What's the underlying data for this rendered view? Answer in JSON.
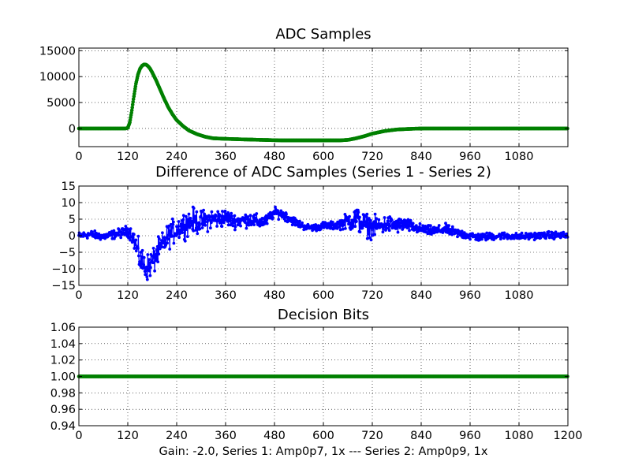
{
  "caption": "Gain: -2.0, Series 1: Amp0p7, 1x --- Series 2: Amp0p9, 1x",
  "chart_data": [
    {
      "type": "line",
      "title": "ADC Samples",
      "xlim": [
        0,
        1200
      ],
      "ylim": [
        -3500,
        15500
      ],
      "xticks": [
        0,
        120,
        240,
        360,
        480,
        600,
        720,
        840,
        960,
        1080
      ],
      "xtick_labels": [
        "0",
        "120",
        "240",
        "360",
        "480",
        "600",
        "720",
        "840",
        "960",
        "1080"
      ],
      "yticks": [
        0,
        5000,
        10000,
        15000
      ],
      "ytick_labels": [
        "0",
        "5000",
        "10000",
        "15000"
      ],
      "grid": true,
      "series": [
        {
          "color": "#008000",
          "marker": "dot",
          "x": [
            0,
            100,
            115,
            120,
            125,
            130,
            135,
            140,
            145,
            150,
            155,
            160,
            165,
            170,
            175,
            180,
            190,
            200,
            210,
            220,
            230,
            240,
            255,
            270,
            290,
            310,
            330,
            360,
            400,
            450,
            500,
            550,
            600,
            640,
            660,
            680,
            700,
            720,
            750,
            780,
            820,
            850,
            900,
            1000,
            1100,
            1199
          ],
          "y": [
            0,
            0,
            0,
            100,
            1200,
            3500,
            6200,
            8600,
            10400,
            11500,
            12100,
            12350,
            12300,
            12000,
            11500,
            10800,
            9200,
            7400,
            5600,
            4000,
            2700,
            1600,
            500,
            -400,
            -1100,
            -1600,
            -1900,
            -2000,
            -2100,
            -2200,
            -2300,
            -2300,
            -2300,
            -2300,
            -2200,
            -1900,
            -1500,
            -1000,
            -500,
            -200,
            -50,
            0,
            0,
            0,
            0,
            0
          ]
        }
      ]
    },
    {
      "type": "line",
      "title": "Difference of ADC Samples (Series 1 - Series 2)",
      "xlim": [
        0,
        1200
      ],
      "ylim": [
        -15,
        15
      ],
      "xticks": [
        0,
        120,
        240,
        360,
        480,
        600,
        720,
        840,
        960,
        1080
      ],
      "xtick_labels": [
        "0",
        "120",
        "240",
        "360",
        "480",
        "600",
        "720",
        "840",
        "960",
        "1080"
      ],
      "yticks": [
        -15,
        -10,
        -5,
        0,
        5,
        10,
        15
      ],
      "ytick_labels": [
        "−15",
        "−10",
        "−5",
        "0",
        "5",
        "10",
        "15"
      ],
      "grid": true,
      "series": [
        {
          "color": "#0000ff",
          "marker": "dot",
          "x": [
            0,
            30,
            60,
            90,
            110,
            120,
            130,
            140,
            150,
            160,
            170,
            180,
            190,
            200,
            210,
            220,
            240,
            260,
            280,
            300,
            320,
            340,
            360,
            380,
            400,
            420,
            440,
            460,
            480,
            500,
            520,
            540,
            560,
            580,
            600,
            620,
            640,
            660,
            680,
            700,
            720,
            740,
            760,
            780,
            800,
            820,
            840,
            860,
            880,
            900,
            920,
            940,
            960,
            980,
            1000,
            1040,
            1080,
            1120,
            1160,
            1199
          ],
          "y": [
            0,
            0.4,
            -0.3,
            0.5,
            1.0,
            1.5,
            0.5,
            -3.0,
            -7.0,
            -9.0,
            -9.5,
            -8.0,
            -6.0,
            -4.0,
            -2.0,
            0.0,
            2.0,
            3.5,
            4.5,
            4.0,
            5.0,
            5.0,
            5.5,
            4.5,
            4.5,
            5.0,
            4.0,
            4.5,
            7.0,
            6.5,
            5.0,
            3.5,
            2.5,
            2.5,
            3.0,
            3.0,
            3.5,
            4.5,
            5.0,
            3.5,
            2.5,
            3.0,
            3.5,
            3.0,
            3.5,
            2.5,
            2.0,
            1.5,
            1.5,
            2.0,
            1.0,
            0.5,
            0.0,
            -0.5,
            -0.3,
            0.0,
            -0.3,
            0.0,
            0.2,
            0.0
          ],
          "noise_amplitude": [
            0.7,
            0.8,
            0.8,
            0.9,
            1.0,
            1.2,
            1.5,
            2.5,
            3.0,
            3.0,
            2.8,
            2.8,
            2.8,
            2.8,
            2.6,
            2.6,
            2.5,
            2.6,
            2.6,
            2.4,
            2.2,
            2.0,
            1.8,
            1.5,
            1.5,
            1.5,
            1.5,
            1.2,
            1.0,
            1.0,
            1.0,
            0.8,
            0.7,
            0.7,
            0.8,
            0.8,
            1.0,
            1.8,
            2.8,
            2.4,
            2.2,
            2.0,
            1.8,
            1.6,
            1.4,
            1.2,
            1.0,
            1.0,
            1.0,
            1.0,
            1.0,
            0.9,
            0.9,
            0.8,
            0.8,
            0.7,
            0.7,
            0.7,
            0.7,
            0.7
          ]
        }
      ]
    },
    {
      "type": "line",
      "title": "Decision Bits",
      "xlim": [
        0,
        1200
      ],
      "ylim": [
        0.94,
        1.06
      ],
      "xticks": [
        0,
        120,
        240,
        360,
        480,
        600,
        720,
        840,
        960,
        1080,
        1200
      ],
      "xtick_labels": [
        "0",
        "120",
        "240",
        "360",
        "480",
        "600",
        "720",
        "840",
        "960",
        "1080",
        "1200"
      ],
      "yticks": [
        0.94,
        0.96,
        0.98,
        1.0,
        1.02,
        1.04,
        1.06
      ],
      "ytick_labels": [
        "0.94",
        "0.96",
        "0.98",
        "1.00",
        "1.02",
        "1.04",
        "1.06"
      ],
      "grid": true,
      "series": [
        {
          "color": "#008000",
          "marker": "dot",
          "x": [
            0,
            1200
          ],
          "y": [
            1.0,
            1.0
          ]
        }
      ]
    }
  ]
}
